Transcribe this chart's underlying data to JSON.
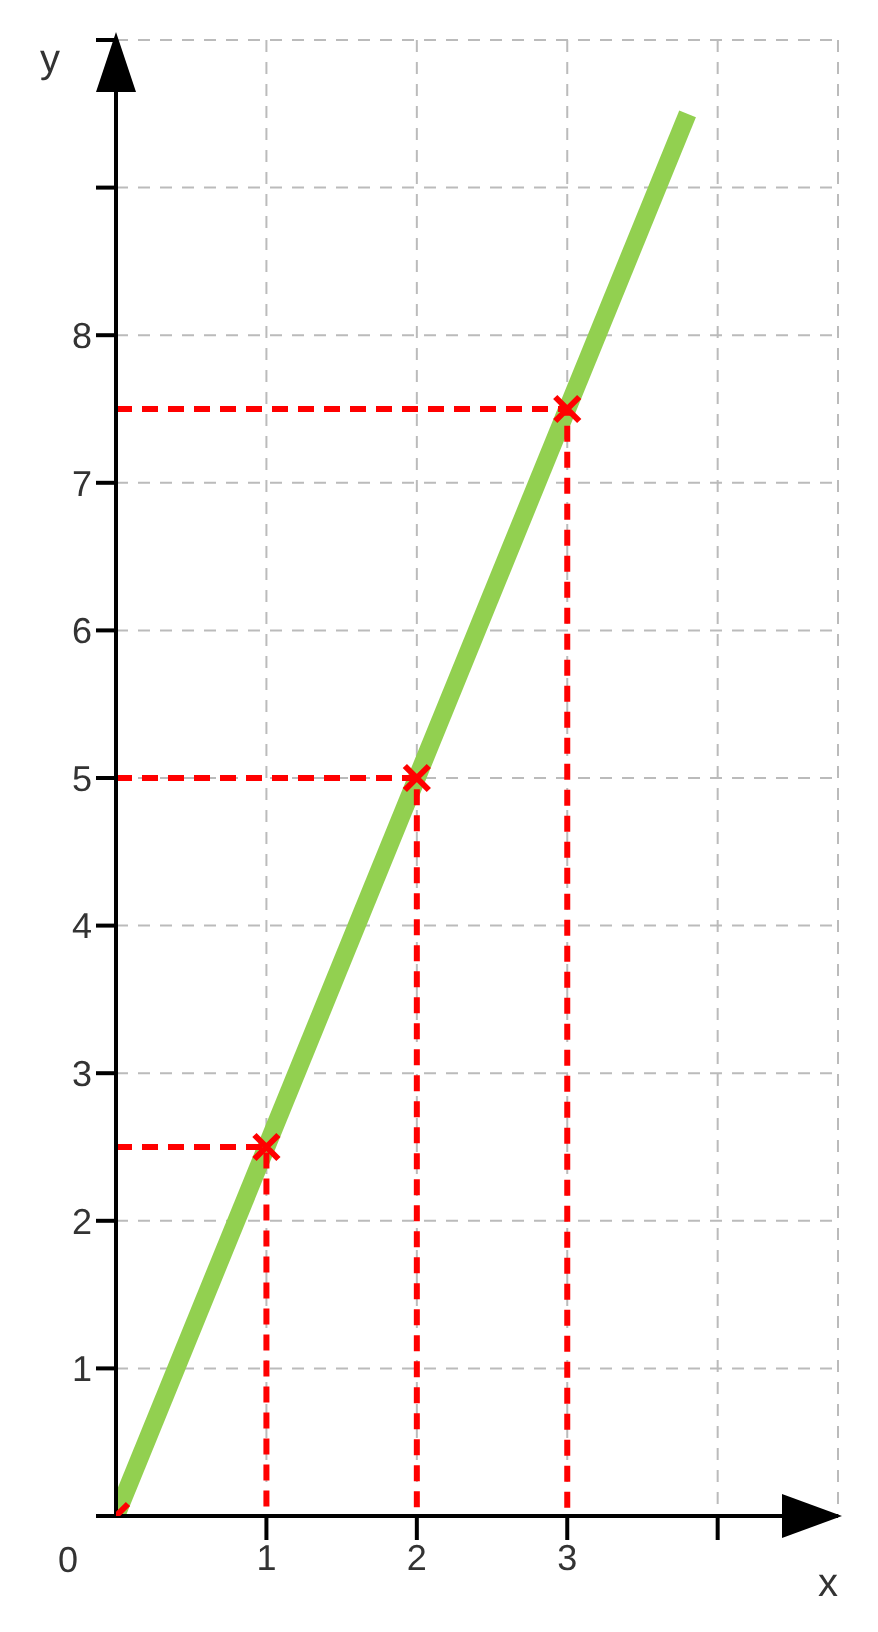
{
  "chart_data": {
    "type": "line",
    "xlabel": "x",
    "ylabel": "y",
    "xlim": [
      0,
      4.8
    ],
    "ylim": [
      0,
      10
    ],
    "xticks": [
      1,
      2,
      3,
      {
        "value": 4,
        "label": null
      }
    ],
    "annotations": [
      {
        "text": "0",
        "x": 0,
        "y": 0
      }
    ],
    "yticks": [
      {
        "value": 0,
        "label": null
      },
      1,
      2,
      3,
      4,
      5,
      6,
      7,
      8,
      {
        "value": 9,
        "label": null
      },
      {
        "value": 10,
        "label": null
      }
    ],
    "grid": true,
    "series": [
      {
        "color": "#92d050",
        "x": [
          0,
          3.8
        ],
        "values": [
          0,
          9.5
        ],
        "line_style": "solid",
        "marker": "none"
      },
      {
        "color": "#ff0000",
        "x": [
          0,
          1,
          1
        ],
        "values": [
          2.5,
          2.5,
          0
        ],
        "line_style": "dashed",
        "marker": "none"
      },
      {
        "color": "#ff0000",
        "x": [
          0,
          2,
          2
        ],
        "values": [
          5,
          5,
          0
        ],
        "line_style": "dashed",
        "marker": "none"
      },
      {
        "color": "#ff0000",
        "x": [
          0,
          3,
          3
        ],
        "values": [
          7.5,
          7.5,
          0
        ],
        "line_style": "dashed",
        "marker": "none"
      },
      {
        "type": "scatter",
        "color": "#ff0000",
        "x": [
          0,
          1,
          2,
          3
        ],
        "values": [
          0,
          2.5,
          5,
          7.5
        ],
        "marker": "cross"
      }
    ]
  }
}
